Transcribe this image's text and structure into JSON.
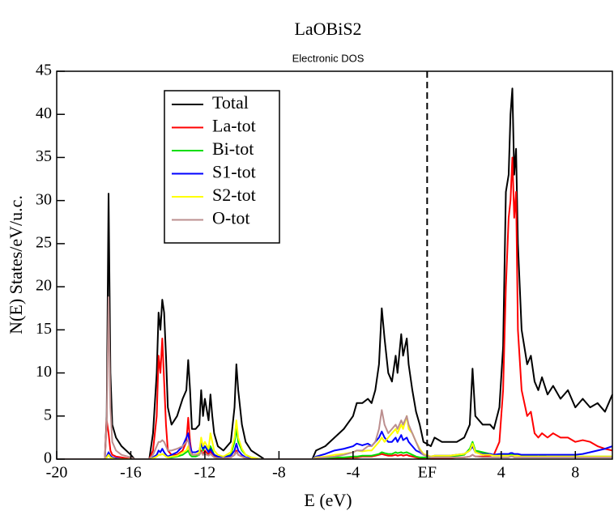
{
  "chart_data": {
    "type": "line",
    "title": "LaOBiS2",
    "subtitle": "Electronic DOS",
    "x_label": "E (eV)",
    "y_label": "N(E) States/eV/u.c.",
    "xlim": [
      -20,
      10
    ],
    "ylim": [
      0,
      45
    ],
    "xticks": [
      -20,
      -16,
      -12,
      -8,
      -4,
      {
        "value": 0,
        "label": "EF"
      },
      4,
      8
    ],
    "yticks": [
      0,
      5,
      10,
      15,
      20,
      25,
      30,
      35,
      40,
      45
    ],
    "grid": false,
    "legend": "upper left",
    "x": [
      -20,
      -17.4,
      -17.3,
      -17.2,
      -17.1,
      -17.0,
      -16.8,
      -16.5,
      -16.0,
      -15.8,
      -15.0,
      -14.8,
      -14.6,
      -14.5,
      -14.4,
      -14.3,
      -14.2,
      -14.1,
      -14.0,
      -13.8,
      -13.5,
      -13.2,
      -13.0,
      -12.9,
      -12.8,
      -12.7,
      -12.5,
      -12.3,
      -12.2,
      -12.1,
      -12.0,
      -11.8,
      -11.7,
      -11.6,
      -11.5,
      -11.3,
      -11.0,
      -10.6,
      -10.4,
      -10.3,
      -10.2,
      -10.0,
      -9.8,
      -9.5,
      -9.0,
      -8.8,
      -6.2,
      -6.0,
      -5.5,
      -5.0,
      -4.5,
      -4.0,
      -3.8,
      -3.5,
      -3.2,
      -3.0,
      -2.8,
      -2.6,
      -2.45,
      -2.3,
      -2.1,
      -1.9,
      -1.7,
      -1.6,
      -1.4,
      -1.3,
      -1.1,
      -1.0,
      -0.8,
      -0.6,
      -0.4,
      -0.2,
      0.2,
      0.4,
      0.8,
      1.2,
      1.6,
      2.0,
      2.3,
      2.45,
      2.6,
      3.0,
      3.4,
      3.6,
      3.9,
      4.1,
      4.25,
      4.4,
      4.5,
      4.6,
      4.7,
      4.8,
      4.9,
      5.1,
      5.4,
      5.6,
      5.8,
      6.0,
      6.2,
      6.5,
      6.8,
      7.2,
      7.6,
      8.0,
      8.4,
      8.8,
      9.2,
      9.6,
      10.0
    ],
    "series": [
      {
        "name": "Total",
        "color": "#000000",
        "values": [
          0,
          0,
          5,
          30.8,
          10,
          4,
          2.5,
          1.5,
          0.5,
          0,
          0,
          3,
          10,
          17,
          15,
          18.5,
          17,
          12,
          6,
          4,
          5,
          7,
          8,
          11.5,
          8,
          3.5,
          3.5,
          4,
          8,
          5,
          7,
          4.5,
          7.5,
          5,
          3,
          1.5,
          1,
          2,
          6,
          11,
          8,
          4,
          2,
          1,
          0.3,
          0,
          0,
          1,
          1.5,
          2.5,
          3.5,
          5,
          6.5,
          6.5,
          7,
          6.5,
          8,
          11,
          17.5,
          14,
          10,
          9,
          12,
          10,
          14.5,
          12,
          14,
          11,
          8,
          5.5,
          4,
          2,
          1.5,
          2.5,
          2,
          2,
          2,
          2.5,
          4,
          10.5,
          5,
          4,
          4,
          3.5,
          6,
          13,
          31,
          33,
          40,
          43,
          33,
          36,
          25,
          15,
          11,
          12,
          9,
          8,
          9.5,
          7.5,
          8.5,
          7,
          8,
          6,
          7,
          6,
          6.5,
          5.5,
          7.5
        ]
      },
      {
        "name": "La-tot",
        "color": "#ff0000",
        "values": [
          0,
          0,
          4.5,
          3,
          1,
          0.5,
          0.3,
          0.2,
          0,
          0,
          0,
          1,
          5,
          12,
          10,
          14,
          9,
          4,
          1,
          0.5,
          0.5,
          1,
          2,
          4.8,
          2,
          0.5,
          0.5,
          0.5,
          1,
          0.5,
          1,
          0.5,
          1,
          0.5,
          0.3,
          0.2,
          0.1,
          0.2,
          0.5,
          1,
          0.5,
          0.3,
          0.1,
          0,
          0,
          0,
          0,
          0.1,
          0.1,
          0.1,
          0.1,
          0.2,
          0.2,
          0.3,
          0.3,
          0.3,
          0.4,
          0.5,
          0.6,
          0.5,
          0.4,
          0.4,
          0.5,
          0.4,
          0.5,
          0.4,
          0.5,
          0.4,
          0.3,
          0.2,
          0.1,
          0.1,
          0.1,
          0.1,
          0.1,
          0.1,
          0.2,
          0.2,
          0.3,
          0.5,
          0.3,
          0.3,
          0.4,
          0.5,
          2,
          8,
          20,
          28,
          30,
          35,
          28,
          31,
          15,
          8,
          5,
          5.5,
          3,
          2.5,
          3,
          2.5,
          3,
          2.5,
          2.5,
          2,
          2.2,
          2,
          1.5,
          1.2,
          1
        ]
      },
      {
        "name": "Bi-tot",
        "color": "#00dd00",
        "values": [
          0,
          0,
          0.2,
          0.5,
          0.2,
          0.1,
          0,
          0,
          0,
          0,
          0,
          0.1,
          0.3,
          0.5,
          0.5,
          0.6,
          0.5,
          0.3,
          0.2,
          0.2,
          0.3,
          0.5,
          0.8,
          1,
          0.5,
          0.3,
          0.3,
          0.5,
          2,
          1,
          1.5,
          1,
          1.5,
          1,
          0.5,
          0.3,
          0.2,
          0.5,
          2,
          3.5,
          2,
          1,
          0.5,
          0.2,
          0,
          0,
          0,
          0.1,
          0.1,
          0.2,
          0.2,
          0.3,
          0.3,
          0.4,
          0.4,
          0.4,
          0.5,
          0.6,
          0.8,
          0.7,
          0.6,
          0.6,
          0.8,
          0.7,
          0.8,
          0.7,
          0.8,
          0.7,
          0.5,
          0.3,
          0.2,
          0.2,
          0.2,
          0.3,
          0.3,
          0.3,
          0.4,
          0.5,
          1.2,
          2,
          1,
          0.8,
          0.6,
          0.5,
          0.5,
          0.5,
          0.5,
          0.5,
          0.5,
          0.5,
          0.5,
          0.5,
          0.5,
          0.4,
          0.4,
          0.4,
          0.4,
          0.3,
          0.4,
          0.3,
          0.3,
          0.3,
          0.3,
          0.3,
          0.3,
          0.3,
          0.3,
          0.3,
          0.3
        ]
      },
      {
        "name": "S1-tot",
        "color": "#0000ff",
        "values": [
          0,
          0,
          0.3,
          0.8,
          0.4,
          0.2,
          0.1,
          0,
          0,
          0,
          0,
          0.2,
          0.5,
          1,
          0.8,
          1.2,
          0.8,
          0.5,
          0.3,
          0.5,
          0.8,
          1.5,
          2.5,
          3,
          1.5,
          0.8,
          0.8,
          1,
          2,
          1.2,
          1.5,
          0.8,
          1.2,
          0.8,
          0.5,
          0.3,
          0.2,
          0.4,
          1,
          1.8,
          1,
          0.5,
          0.2,
          0.1,
          0,
          0,
          0,
          0.3,
          0.6,
          1,
          1.2,
          1.5,
          1.8,
          1.6,
          1.8,
          1.5,
          2,
          2.5,
          3.2,
          2.5,
          2,
          2,
          2.5,
          2,
          2.8,
          2.2,
          2.5,
          2,
          1.5,
          1,
          0.8,
          0.5,
          0.3,
          0.4,
          0.4,
          0.4,
          0.5,
          0.6,
          1,
          1.5,
          0.8,
          0.6,
          0.6,
          0.5,
          0.6,
          0.6,
          0.6,
          0.6,
          0.7,
          0.7,
          0.6,
          0.6,
          0.6,
          0.5,
          0.5,
          0.5,
          0.5,
          0.5,
          0.5,
          0.5,
          0.5,
          0.5,
          0.5,
          0.5,
          0.6,
          0.8,
          1,
          1.2,
          1.5
        ]
      },
      {
        "name": "S2-tot",
        "color": "#ffff00",
        "values": [
          0,
          0,
          0.2,
          0.5,
          0.2,
          0.1,
          0,
          0,
          0,
          0,
          0,
          0.1,
          0.3,
          0.5,
          0.5,
          0.6,
          0.5,
          0.3,
          0.2,
          0.3,
          0.4,
          0.8,
          1,
          1.5,
          0.8,
          0.5,
          0.5,
          0.8,
          2.5,
          1.5,
          2,
          1.2,
          3,
          2,
          1,
          0.5,
          0.3,
          0.8,
          2.5,
          4.5,
          2.5,
          1.2,
          0.5,
          0.2,
          0,
          0,
          0,
          0.2,
          0.3,
          0.5,
          0.6,
          0.8,
          1,
          0.9,
          1,
          1,
          1.5,
          2,
          2.5,
          2,
          2.5,
          3,
          3.5,
          3,
          4,
          3.5,
          5,
          3.5,
          3,
          2,
          1.2,
          0.6,
          0.3,
          0.4,
          0.4,
          0.4,
          0.5,
          0.6,
          1,
          1.8,
          0.8,
          0.5,
          0.5,
          0.4,
          0.4,
          0.4,
          0.4,
          0.4,
          0.4,
          0.4,
          0.4,
          0.4,
          0.4,
          0.3,
          0.3,
          0.3,
          0.3,
          0.3,
          0.3,
          0.3,
          0.3,
          0.3,
          0.3,
          0.3,
          0.3,
          0.3,
          0.3,
          0.3,
          0.3
        ]
      },
      {
        "name": "O-tot",
        "color": "#bc8f8f",
        "values": [
          0,
          0,
          4,
          18.8,
          6,
          2,
          1,
          0.5,
          0.2,
          0,
          0,
          0.5,
          1.5,
          2,
          2,
          2.2,
          2,
          1.5,
          1,
          1,
          1.2,
          1.5,
          2,
          2.2,
          1,
          0.5,
          0.5,
          0.5,
          0.8,
          0.5,
          0.6,
          0.4,
          0.6,
          0.4,
          0.2,
          0.1,
          0.1,
          0.2,
          0.5,
          0.8,
          0.5,
          0.3,
          0.1,
          0,
          0,
          0,
          0,
          0.1,
          0.2,
          0.3,
          0.5,
          0.8,
          1,
          1,
          1.5,
          1.5,
          2,
          3.5,
          5.7,
          4,
          3,
          3.5,
          4,
          3.5,
          4.5,
          4,
          5,
          4,
          3,
          2,
          1,
          0.5,
          0.2,
          0.2,
          0.2,
          0.2,
          0.2,
          0.2,
          0.3,
          0.5,
          0.3,
          0.2,
          0.2,
          0.2,
          0.2,
          0.2,
          0.2,
          0.2,
          0.3,
          0.3,
          0.2,
          0.2,
          0.2,
          0.2,
          0.2,
          0.2,
          0.2,
          0.2,
          0.2,
          0.2,
          0.2,
          0.2,
          0.2,
          0.2,
          0.2,
          0.2,
          0.2,
          0.2,
          0.2
        ]
      }
    ]
  }
}
